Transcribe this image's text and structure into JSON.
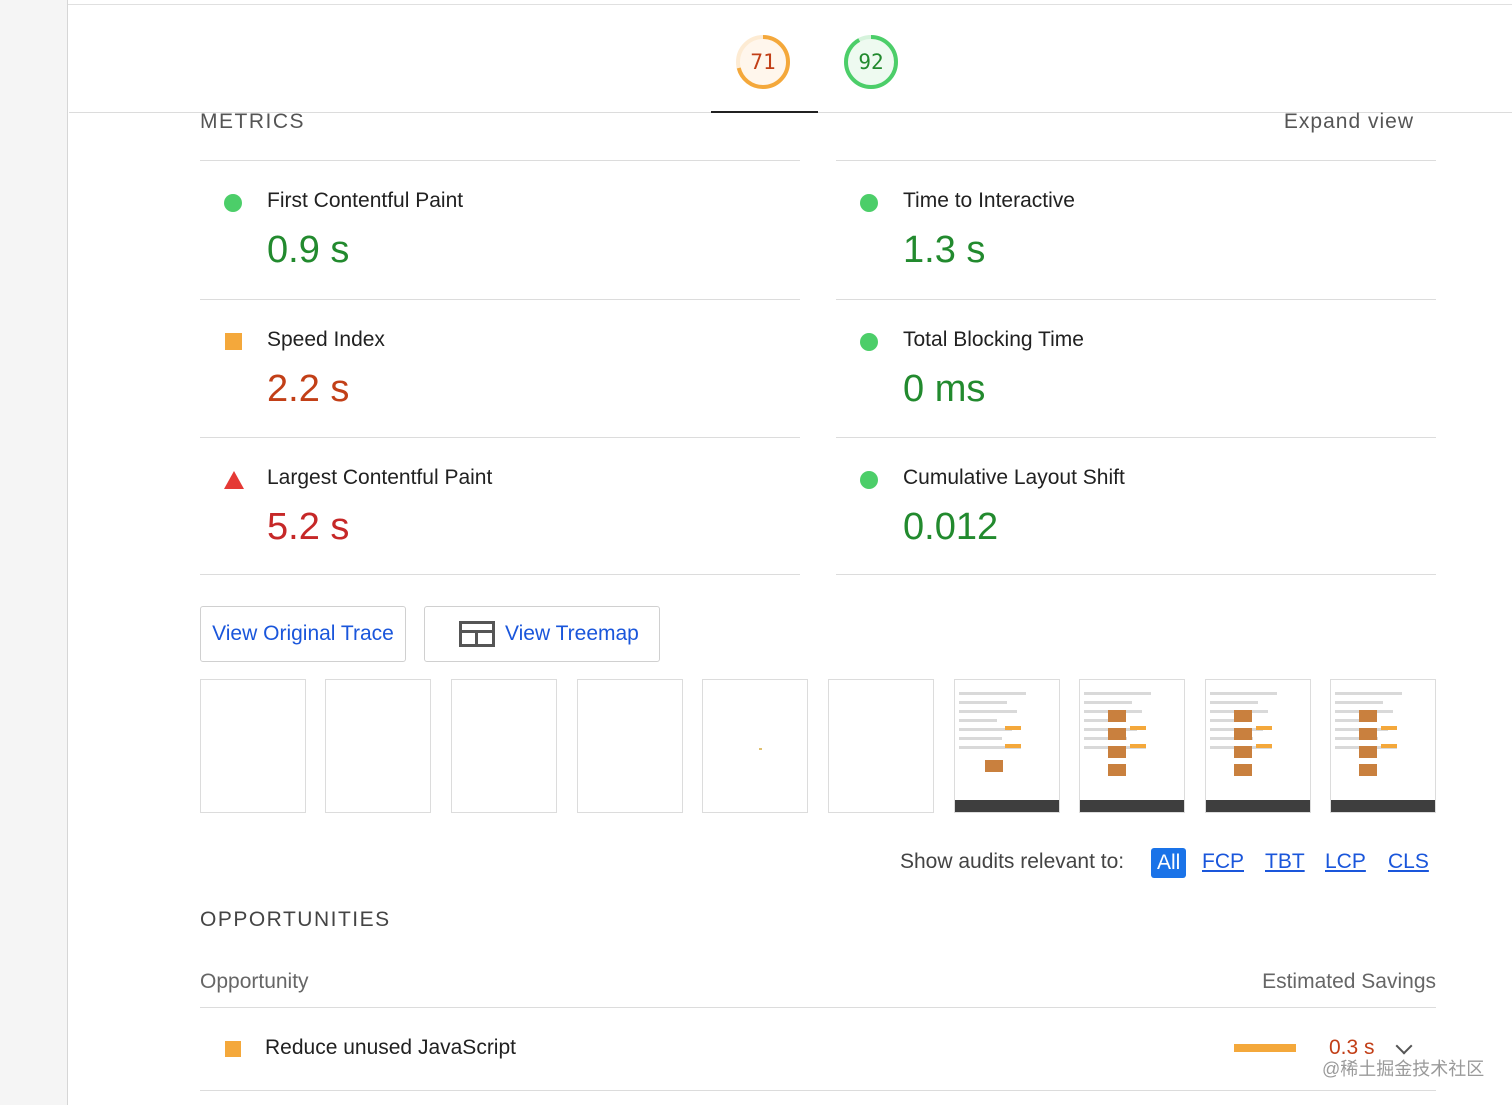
{
  "gauges": [
    {
      "score": "71",
      "color": "#f4a83b",
      "text_color": "#c23f17",
      "fraction": 0.71
    },
    {
      "score": "92",
      "color": "#4cce69",
      "text_color": "#228a2e",
      "fraction": 0.92
    }
  ],
  "metrics": {
    "title": "METRICS",
    "expand_label": "Expand view",
    "items": [
      {
        "label": "First Contentful Paint",
        "value": "0.9 s",
        "marker": "circle",
        "rating": "green"
      },
      {
        "label": "Time to Interactive",
        "value": "1.3 s",
        "marker": "circle",
        "rating": "green"
      },
      {
        "label": "Speed Index",
        "value": "2.2 s",
        "marker": "square",
        "rating": "orange"
      },
      {
        "label": "Total Blocking Time",
        "value": "0 ms",
        "marker": "circle",
        "rating": "green"
      },
      {
        "label": "Largest Contentful Paint",
        "value": "5.2 s",
        "marker": "triangle",
        "rating": "red"
      },
      {
        "label": "Cumulative Layout Shift",
        "value": "0.012",
        "marker": "circle",
        "rating": "green"
      }
    ]
  },
  "buttons": {
    "trace": "View Original Trace",
    "treemap": "View Treemap"
  },
  "filmstrip": {
    "frames": [
      "blank",
      "blank",
      "blank",
      "blank",
      "blank",
      "blank",
      "screenshot",
      "screenshot",
      "screenshot",
      "screenshot"
    ]
  },
  "filters": {
    "label": "Show audits relevant to:",
    "all": "All",
    "options": [
      "FCP",
      "TBT",
      "LCP",
      "CLS"
    ]
  },
  "opportunities": {
    "title": "OPPORTUNITIES",
    "col_left": "Opportunity",
    "col_right": "Estimated Savings",
    "items": [
      {
        "name": "Reduce unused JavaScript",
        "savings": "0.3 s"
      }
    ]
  },
  "colors": {
    "good": "#228a2e",
    "average": "#c23f17",
    "poor": "#c62828",
    "accent": "#1a73e8"
  },
  "watermark": "@稀土掘金技术社区"
}
